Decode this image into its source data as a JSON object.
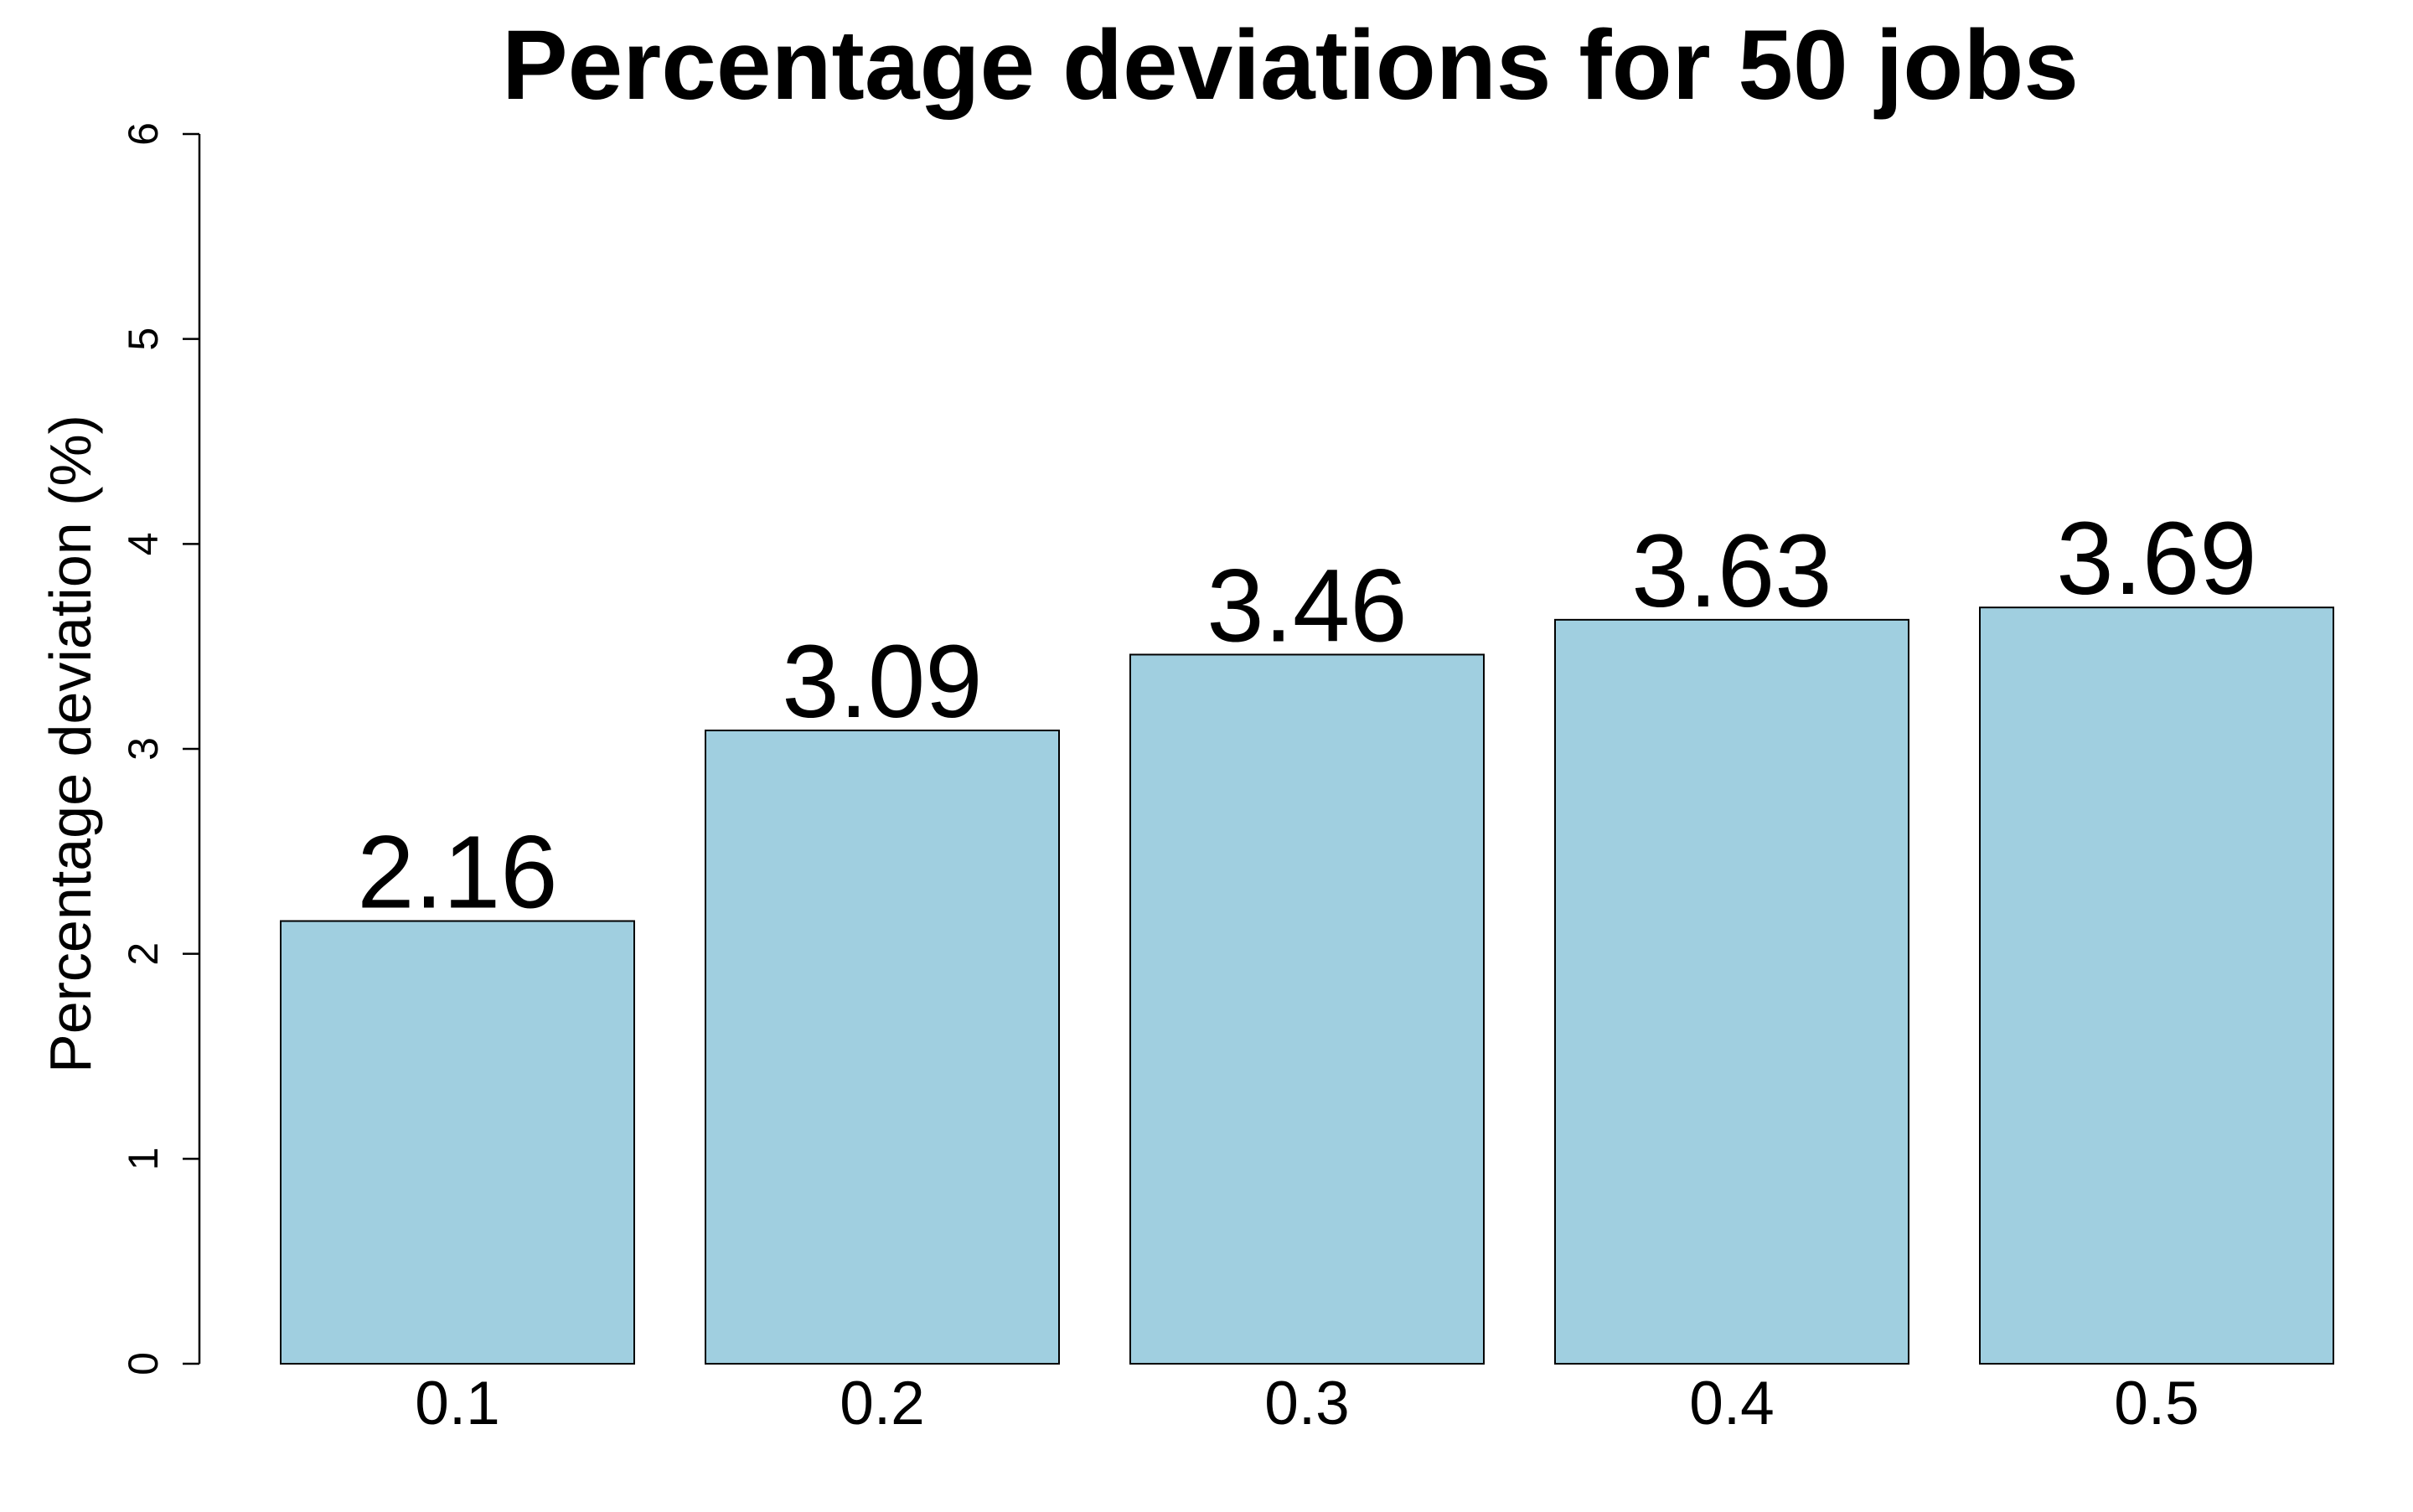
{
  "chart_data": {
    "type": "bar",
    "title": "Percentage deviations for 50 jobs",
    "xlabel": "",
    "ylabel": "Percentage deviation (%)",
    "categories": [
      "0.1",
      "0.2",
      "0.3",
      "0.4",
      "0.5"
    ],
    "values": [
      2.16,
      3.09,
      3.46,
      3.63,
      3.69
    ],
    "data_labels": [
      "2.16",
      "3.09",
      "3.46",
      "3.63",
      "3.69"
    ],
    "ylim": [
      0,
      6
    ],
    "yticks": [
      "0",
      "1",
      "2",
      "3",
      "4",
      "5",
      "6"
    ],
    "grid": false,
    "legend": "none",
    "colors": {
      "bar_fill": "#a0cfe0",
      "bar_stroke": "#000000",
      "text": "#000000"
    }
  }
}
